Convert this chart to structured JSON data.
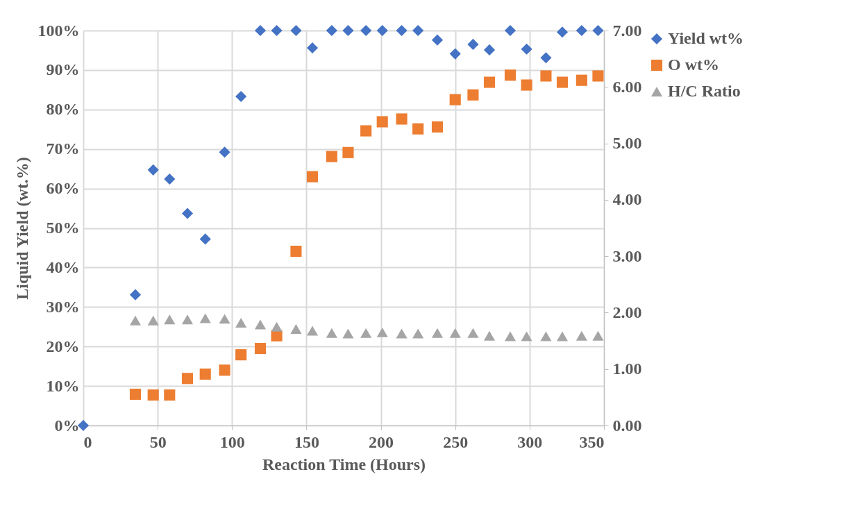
{
  "chart_data": {
    "type": "scatter",
    "xlabel": "Reaction Time (Hours)",
    "ylabel": "Liquid Yield (wt.%)",
    "xlim": [
      0,
      350
    ],
    "xticks": [
      0,
      50,
      100,
      150,
      200,
      250,
      300,
      350
    ],
    "ylim": [
      0,
      100
    ],
    "yticks": [
      {
        "value": 0,
        "label": "0%"
      },
      {
        "value": 10,
        "label": "10%"
      },
      {
        "value": 20,
        "label": "20%"
      },
      {
        "value": 30,
        "label": "30%"
      },
      {
        "value": 40,
        "label": "40%"
      },
      {
        "value": 50,
        "label": "50%"
      },
      {
        "value": 60,
        "label": "60%"
      },
      {
        "value": 70,
        "label": "70%"
      },
      {
        "value": 80,
        "label": "80%"
      },
      {
        "value": 90,
        "label": "90%"
      },
      {
        "value": 100,
        "label": "100%"
      }
    ],
    "y2lim": [
      0,
      7
    ],
    "y2ticks": [
      {
        "value": 0,
        "label": "0.00"
      },
      {
        "value": 1,
        "label": "1.00"
      },
      {
        "value": 2,
        "label": "2.00"
      },
      {
        "value": 3,
        "label": "3.00"
      },
      {
        "value": 4,
        "label": "4.00"
      },
      {
        "value": 5,
        "label": "5.00"
      },
      {
        "value": 6,
        "label": "6.00"
      },
      {
        "value": 7,
        "label": "7.00"
      }
    ],
    "grid": true,
    "legend": "right",
    "series": [
      {
        "name": "Yield wt%",
        "color": "#4472c4",
        "marker": "diamond",
        "x": [
          0,
          35,
          47,
          58,
          70,
          82,
          95,
          106,
          119,
          130,
          143,
          154,
          167,
          178,
          190,
          201,
          214,
          225,
          238,
          250,
          262,
          273,
          287,
          298,
          311,
          322,
          335,
          346
        ],
        "values": [
          0,
          33.1,
          64.7,
          62.4,
          53.7,
          47.2,
          69.2,
          83.3,
          100,
          100,
          100,
          95.6,
          100,
          100,
          100,
          100,
          100,
          100,
          97.6,
          94.1,
          96.5,
          95.1,
          100,
          95.3,
          93.1,
          99.6,
          100,
          100
        ]
      },
      {
        "name": "O wt%",
        "color": "#ed7d31",
        "marker": "square",
        "x": [
          35,
          47,
          58,
          70,
          82,
          95,
          106,
          119,
          130,
          143,
          154,
          167,
          178,
          190,
          201,
          214,
          225,
          238,
          250,
          262,
          273,
          287,
          298,
          311,
          322,
          335,
          346
        ],
        "values": [
          7.9,
          7.7,
          7.7,
          11.9,
          13.0,
          14.0,
          17.9,
          19.5,
          22.7,
          44.1,
          63.0,
          68.1,
          69.1,
          74.6,
          76.9,
          77.6,
          75.1,
          75.6,
          82.5,
          83.7,
          86.9,
          88.7,
          86.2,
          88.5,
          86.9,
          87.4,
          88.5
        ]
      },
      {
        "name": "H/C Ratio",
        "color": "#a5a5a5",
        "marker": "triangle",
        "axis": "y2",
        "x": [
          35,
          47,
          58,
          70,
          82,
          95,
          106,
          119,
          130,
          143,
          154,
          167,
          178,
          190,
          201,
          214,
          225,
          238,
          250,
          262,
          273,
          287,
          298,
          311,
          322,
          335,
          346
        ],
        "values": [
          1.86,
          1.86,
          1.88,
          1.88,
          1.9,
          1.89,
          1.82,
          1.79,
          1.75,
          1.71,
          1.68,
          1.64,
          1.63,
          1.64,
          1.65,
          1.63,
          1.63,
          1.64,
          1.64,
          1.64,
          1.59,
          1.58,
          1.58,
          1.58,
          1.58,
          1.59,
          1.59
        ]
      }
    ]
  }
}
